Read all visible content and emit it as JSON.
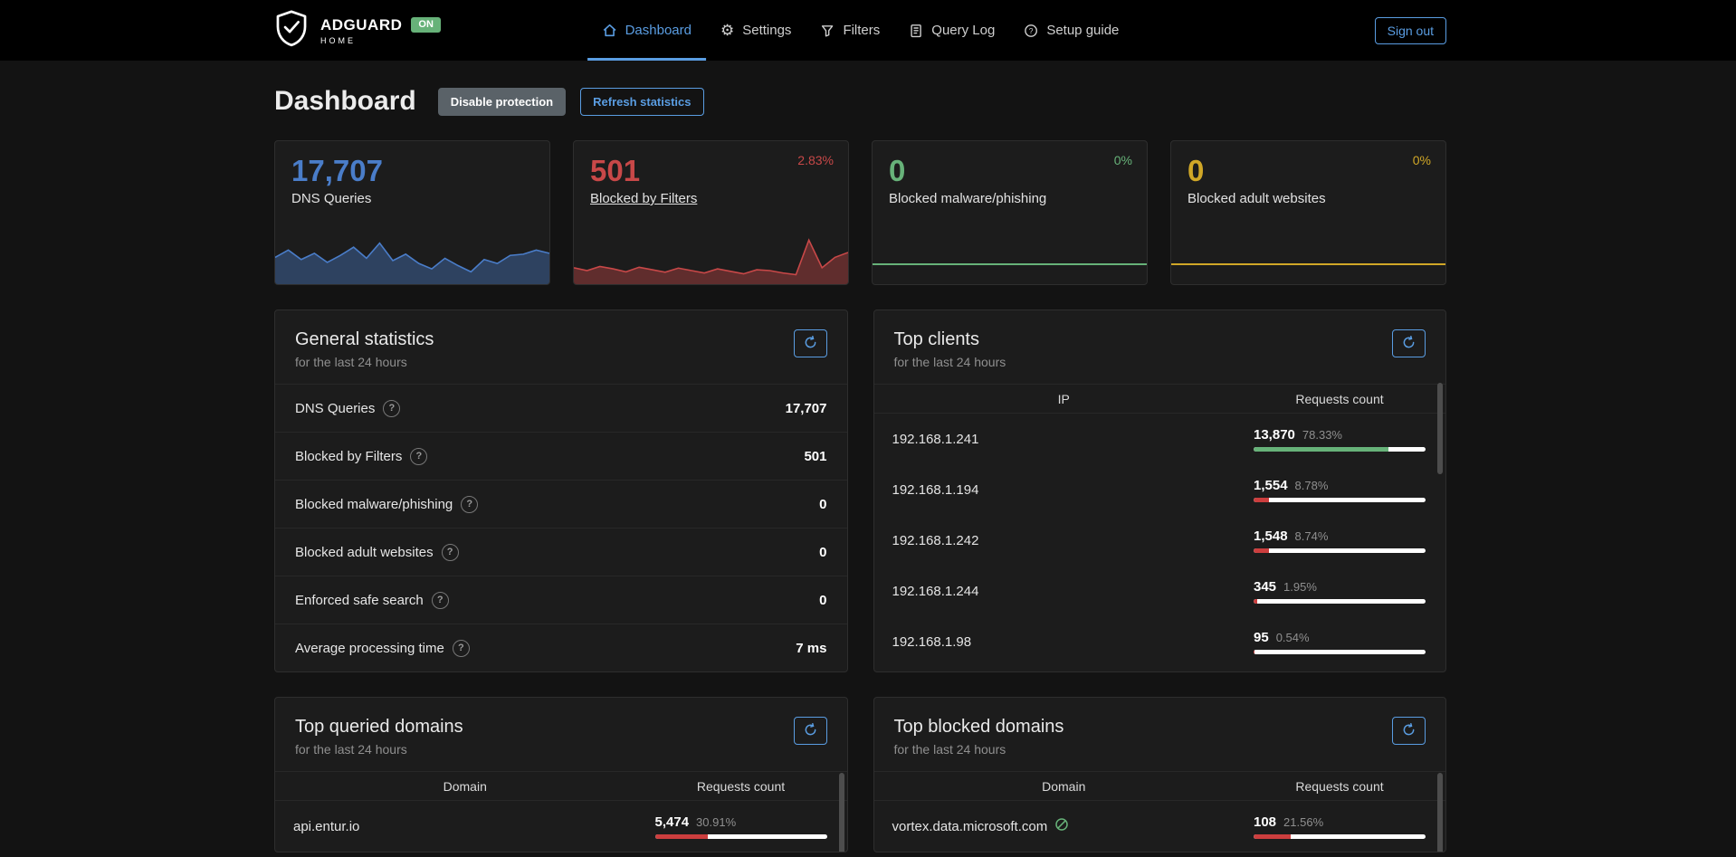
{
  "navbar": {
    "brand": {
      "name": "ADGUARD",
      "sub": "HOME",
      "status": "ON"
    },
    "links": [
      {
        "label": "Dashboard",
        "active": true
      },
      {
        "label": "Settings",
        "active": false
      },
      {
        "label": "Filters",
        "active": false
      },
      {
        "label": "Query Log",
        "active": false
      },
      {
        "label": "Setup guide",
        "active": false
      }
    ],
    "signout": "Sign out"
  },
  "page": {
    "title": "Dashboard",
    "disable_protection": "Disable protection",
    "refresh_statistics": "Refresh statistics"
  },
  "stat_cards": [
    {
      "value": "17,707",
      "label": "DNS Queries",
      "percent": "",
      "color": "#4a7dc9",
      "sparkline": [
        50,
        68,
        45,
        60,
        38,
        55,
        75,
        48,
        85,
        42,
        58,
        35,
        22,
        48,
        30,
        15,
        45,
        35,
        55,
        58,
        68,
        60
      ]
    },
    {
      "value": "501",
      "label": "Blocked by Filters",
      "percent": "2.83%",
      "color": "#c84848",
      "sparkline": [
        25,
        18,
        28,
        22,
        15,
        26,
        20,
        14,
        24,
        18,
        12,
        22,
        16,
        10,
        20,
        18,
        12,
        8,
        92,
        25,
        50,
        62
      ]
    },
    {
      "value": "0",
      "label": "Blocked malware/phishing",
      "percent": "0%",
      "color": "#67b279",
      "sparkline": [
        0,
        0,
        0,
        0,
        0,
        0,
        0,
        0,
        0,
        0,
        0,
        0,
        0,
        0,
        0,
        0,
        0,
        0,
        0,
        0,
        0,
        0
      ]
    },
    {
      "value": "0",
      "label": "Blocked adult websites",
      "percent": "0%",
      "color": "#d0a727",
      "sparkline": [
        0,
        0,
        0,
        0,
        0,
        0,
        0,
        0,
        0,
        0,
        0,
        0,
        0,
        0,
        0,
        0,
        0,
        0,
        0,
        0,
        0,
        0
      ]
    }
  ],
  "general_statistics": {
    "title": "General statistics",
    "subtitle": "for the last 24 hours",
    "rows": [
      {
        "label": "DNS Queries",
        "value": "17,707"
      },
      {
        "label": "Blocked by Filters",
        "value": "501"
      },
      {
        "label": "Blocked malware/phishing",
        "value": "0"
      },
      {
        "label": "Blocked adult websites",
        "value": "0"
      },
      {
        "label": "Enforced safe search",
        "value": "0"
      },
      {
        "label": "Average processing time",
        "value": "7 ms"
      }
    ]
  },
  "top_clients": {
    "title": "Top clients",
    "subtitle": "for the last 24 hours",
    "columns": [
      "IP",
      "Requests count"
    ],
    "rows": [
      {
        "ip": "192.168.1.241",
        "count": "13,870",
        "percent": "78.33%",
        "pct": 78.33,
        "bar_color": "#67b279"
      },
      {
        "ip": "192.168.1.194",
        "count": "1,554",
        "percent": "8.78%",
        "pct": 8.78,
        "bar_color": "#cc3e3e"
      },
      {
        "ip": "192.168.1.242",
        "count": "1,548",
        "percent": "8.74%",
        "pct": 8.74,
        "bar_color": "#cc3e3e"
      },
      {
        "ip": "192.168.1.244",
        "count": "345",
        "percent": "1.95%",
        "pct": 1.95,
        "bar_color": "#cc3e3e"
      },
      {
        "ip": "192.168.1.98",
        "count": "95",
        "percent": "0.54%",
        "pct": 0.54,
        "bar_color": "#cc3e3e"
      }
    ]
  },
  "top_queried": {
    "title": "Top queried domains",
    "subtitle": "for the last 24 hours",
    "columns": [
      "Domain",
      "Requests count"
    ],
    "rows": [
      {
        "domain": "api.entur.io",
        "count": "5,474",
        "percent": "30.91%",
        "pct": 30.91,
        "bar_color": "#cc3e3e"
      }
    ]
  },
  "top_blocked": {
    "title": "Top blocked domains",
    "subtitle": "for the last 24 hours",
    "columns": [
      "Domain",
      "Requests count"
    ],
    "rows": [
      {
        "domain": "vortex.data.microsoft.com",
        "count": "108",
        "percent": "21.56%",
        "pct": 21.56,
        "bar_color": "#cc3e3e"
      }
    ]
  },
  "colors": {
    "accent_blue": "#5a9de2",
    "stat_blue": "#4a7dc9",
    "stat_red": "#c84848",
    "stat_green": "#67b279",
    "stat_yellow": "#d0a727",
    "bar_green": "#67b279",
    "bar_red": "#cc3e3e",
    "bar_track": "#ffffff",
    "on_badge": "#67b279",
    "navbar_bg": "#000000",
    "page_bg": "#131313",
    "card_bg": "#1c1c1c"
  }
}
